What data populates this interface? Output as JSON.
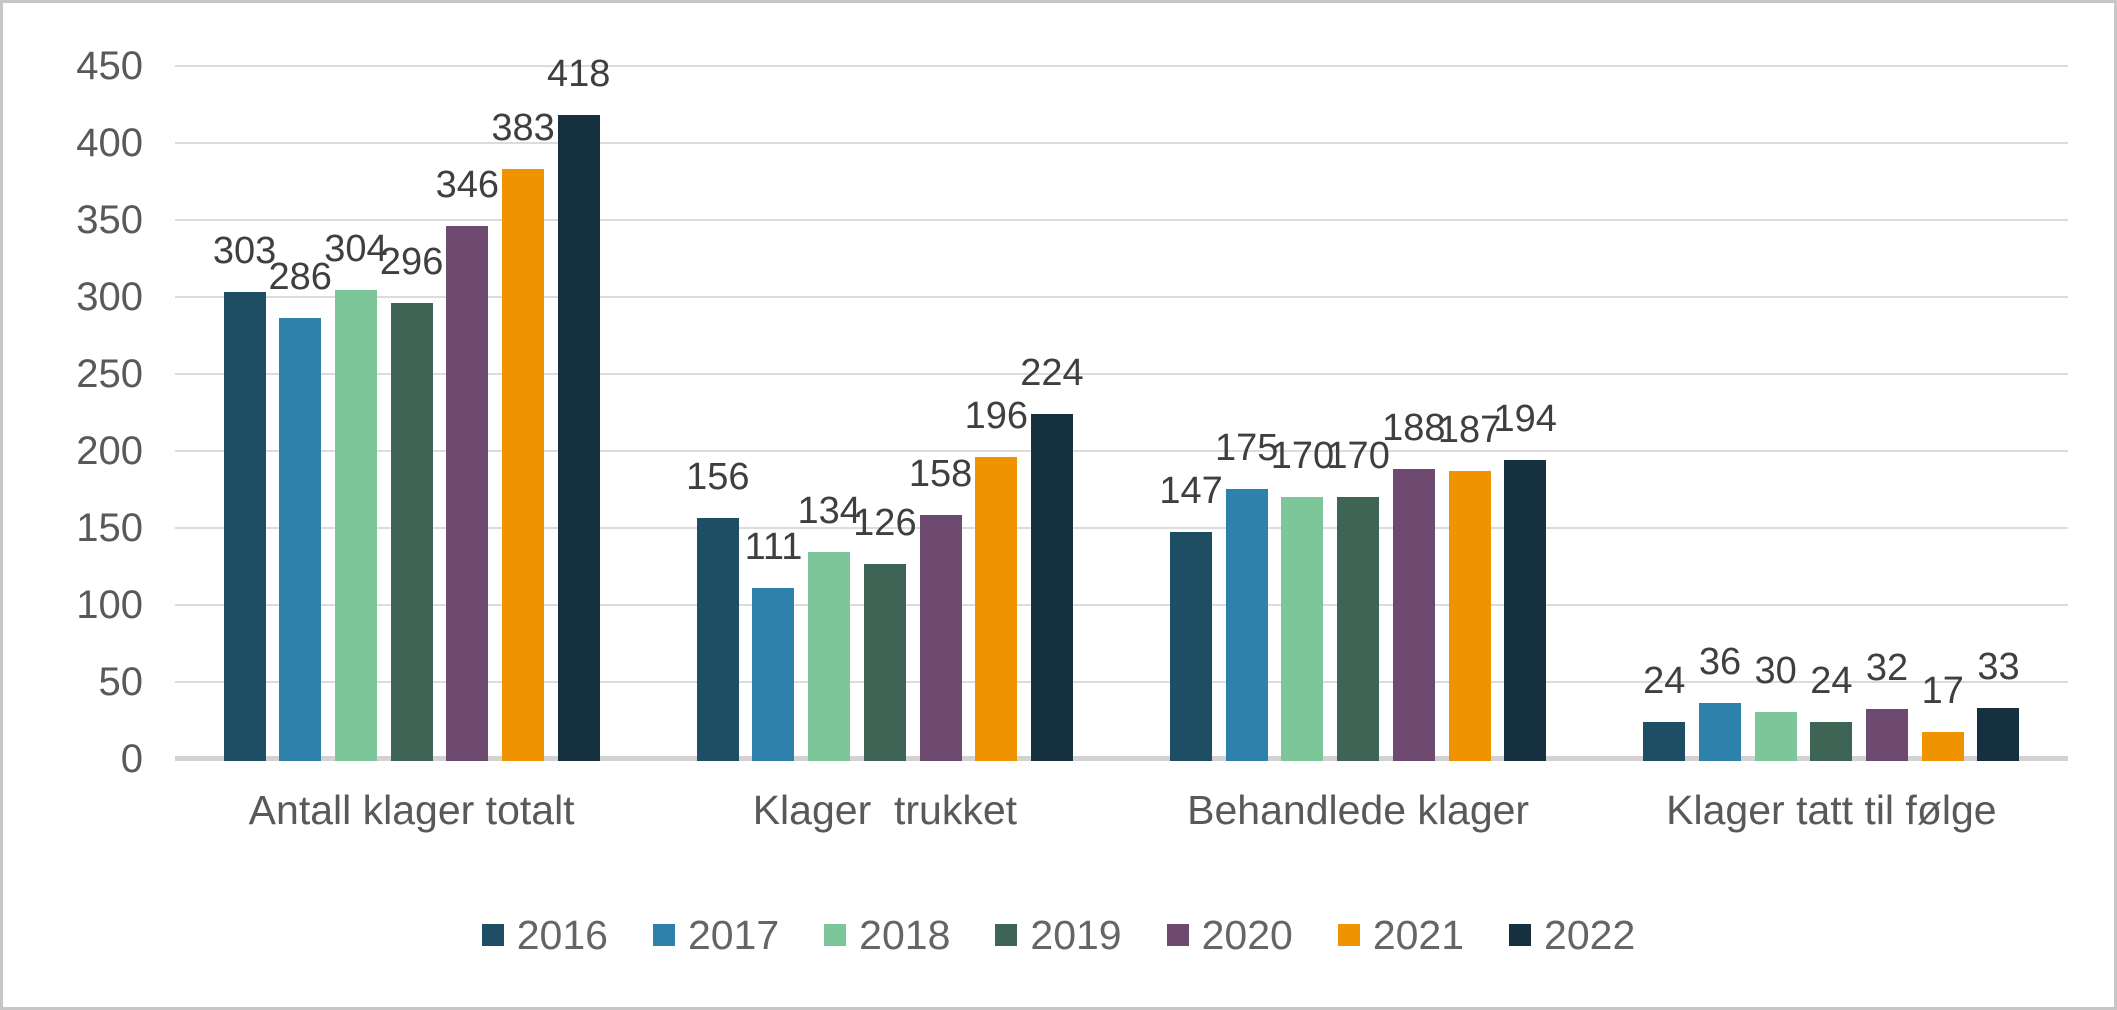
{
  "chart_data": {
    "type": "bar",
    "title": "",
    "xlabel": "",
    "ylabel": "",
    "categories": [
      "Antall klager totalt",
      "Klager  trukket",
      "Behandlede klager",
      "Klager tatt til følge"
    ],
    "series": [
      {
        "name": "2016",
        "color": "#1E4E64",
        "values": [
          303,
          156,
          147,
          24
        ]
      },
      {
        "name": "2017",
        "color": "#2E81AB",
        "values": [
          286,
          111,
          175,
          36
        ]
      },
      {
        "name": "2018",
        "color": "#7CC699",
        "values": [
          304,
          134,
          170,
          30
        ]
      },
      {
        "name": "2019",
        "color": "#3E6456",
        "values": [
          296,
          126,
          170,
          24
        ]
      },
      {
        "name": "2020",
        "color": "#6F4A70",
        "values": [
          346,
          158,
          188,
          32
        ]
      },
      {
        "name": "2021",
        "color": "#F09300",
        "values": [
          383,
          196,
          187,
          17
        ]
      },
      {
        "name": "2022",
        "color": "#15303F",
        "values": [
          418,
          224,
          194,
          33
        ]
      }
    ],
    "ylim": [
      0,
      450
    ],
    "yticks": [
      0,
      50,
      100,
      150,
      200,
      250,
      300,
      350,
      400,
      450
    ],
    "grid": true,
    "data_labels": true,
    "legend_position": "bottom"
  },
  "style": {
    "background": "#ffffff",
    "frame_border_color": "#c6c6c6",
    "grid_color": "#dcdcdc",
    "baseline_color": "#d2d2d2",
    "axis_text_color": "#595959",
    "data_label_color": "#3f3f3f",
    "legend_text_color": "#656565"
  }
}
